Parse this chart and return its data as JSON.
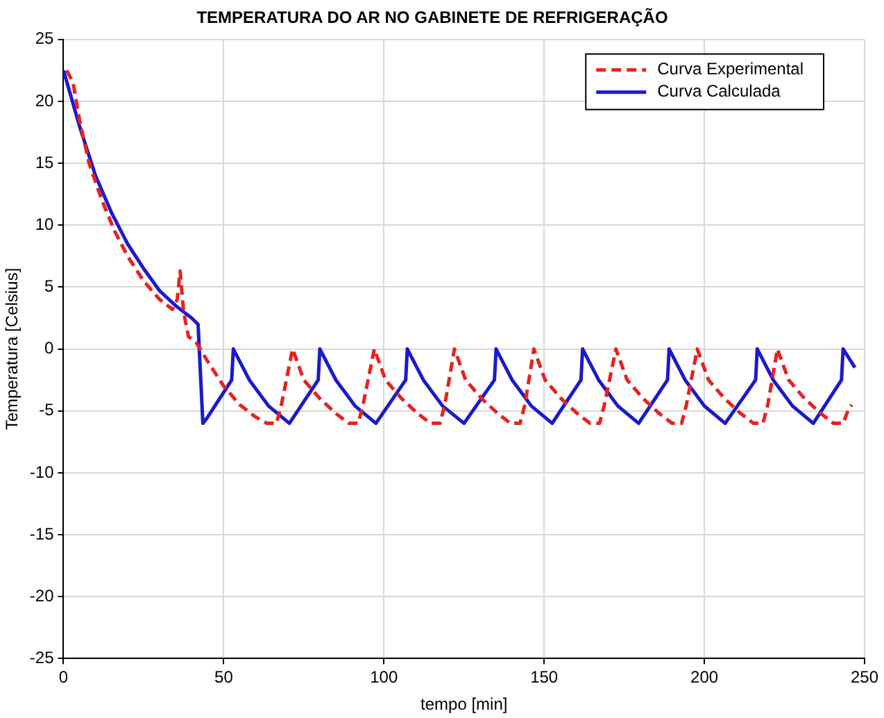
{
  "chart_data": {
    "type": "line",
    "title": "TEMPERATURA DO AR NO GABINETE DE REFRIGERAÇÃO",
    "xlabel": "tempo [min]",
    "ylabel": "Temperatura [Celsius]",
    "xlim": [
      0,
      250
    ],
    "xticks": [
      0,
      50,
      100,
      150,
      200,
      250
    ],
    "ylim": [
      -25,
      25
    ],
    "yticks": [
      -25,
      -20,
      -15,
      -10,
      -5,
      0,
      5,
      10,
      15,
      20,
      25
    ],
    "grid": true,
    "legend": "top right",
    "marker": "none",
    "series": [
      {
        "name": "Curva Experimental",
        "color": "#e8221f",
        "line_style": "dashed",
        "x": [
          1,
          3,
          5,
          8,
          12,
          16,
          20,
          25,
          30,
          34,
          35.5,
          36.4,
          37.5,
          39,
          41.5,
          45,
          50,
          55,
          60,
          63.5,
          66.5,
          68,
          71.5,
          75,
          80,
          85,
          89,
          92,
          93.5,
          97,
          100.5,
          105.5,
          110.5,
          114.5,
          117.5,
          119,
          122,
          125.5,
          130.5,
          135.5,
          139.5,
          142.5,
          144,
          146.8,
          150.3,
          155.3,
          160.3,
          164.3,
          167.3,
          168.8,
          172.4,
          175.9,
          180.9,
          185.9,
          189.9,
          192.9,
          194.4,
          197.8,
          201.3,
          206.3,
          211.3,
          215.3,
          218.3,
          219.8,
          222.8,
          226.3,
          231.3,
          236.3,
          240.3,
          243.3,
          244.8,
          246
        ],
        "values": [
          22.5,
          21.5,
          18.5,
          15,
          12,
          9.5,
          7.5,
          5.5,
          4,
          3.2,
          4,
          6.3,
          3,
          1,
          0.5,
          -1,
          -3,
          -4.5,
          -5.5,
          -6,
          -6,
          -4.5,
          0,
          -2.5,
          -4,
          -5.2,
          -6,
          -6,
          -4.5,
          0,
          -2.5,
          -4,
          -5.2,
          -6,
          -6,
          -4.5,
          0,
          -2.5,
          -4,
          -5.2,
          -6,
          -6,
          -4.5,
          0,
          -2.5,
          -4,
          -5.2,
          -6,
          -6,
          -4.5,
          0,
          -2.5,
          -4,
          -5.2,
          -6,
          -6,
          -4.5,
          0,
          -2.5,
          -4,
          -5.2,
          -6,
          -6,
          -4.5,
          0,
          -2.5,
          -4,
          -5.2,
          -6,
          -6,
          -5,
          -4.5
        ]
      },
      {
        "name": "Curva Calculada",
        "color": "#1a1acc",
        "line_style": "solid",
        "x": [
          0,
          5,
          10,
          15,
          20,
          25,
          30,
          35,
          40,
          42,
          43.5,
          45,
          52.5,
          53,
          58,
          64,
          70.5,
          79.5,
          80,
          85,
          91,
          97.5,
          106.8,
          107.3,
          112.3,
          118.3,
          125,
          134.5,
          135,
          140,
          146,
          152.5,
          161.5,
          162,
          167,
          173,
          179.5,
          188.5,
          189,
          194,
          200,
          206.5,
          216,
          216.5,
          221.5,
          227.5,
          234,
          242.8,
          243.3,
          247
        ],
        "values": [
          22.5,
          18,
          14,
          11,
          8.5,
          6.5,
          4.7,
          3.5,
          2.5,
          2,
          -6,
          -5.5,
          -2.5,
          0,
          -2.5,
          -4.6,
          -6,
          -2.5,
          0,
          -2.5,
          -4.6,
          -6,
          -2.5,
          0,
          -2.5,
          -4.6,
          -6,
          -2.5,
          0,
          -2.5,
          -4.6,
          -6,
          -2.5,
          0,
          -2.5,
          -4.6,
          -6,
          -2.5,
          0,
          -2.5,
          -4.6,
          -6,
          -2.5,
          0,
          -2.5,
          -4.6,
          -6,
          -2.5,
          0,
          -1.5
        ]
      }
    ]
  }
}
